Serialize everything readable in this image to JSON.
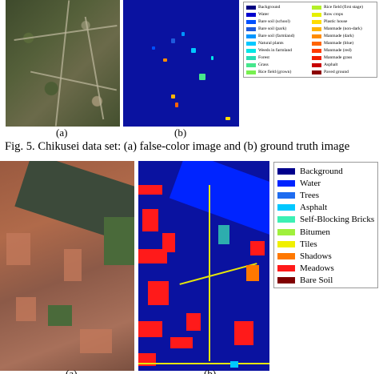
{
  "figure5": {
    "subfig_a_label": "(a)",
    "subfig_b_label": "(b)",
    "caption": "Fig. 5.  Chikusei data set: (a) false-color image and (b) ground truth image",
    "legend": [
      {
        "label": "Background",
        "color": "#000080"
      },
      {
        "label": "Water",
        "color": "#0000cd"
      },
      {
        "label": "Bare soil (school)",
        "color": "#0050ff"
      },
      {
        "label": "Bare soil (park)",
        "color": "#1e5adc"
      },
      {
        "label": "Bare soil (farmland)",
        "color": "#0096ff"
      },
      {
        "label": "Natural plants",
        "color": "#00c8ff"
      },
      {
        "label": "Weeds in farmland",
        "color": "#00e6e6"
      },
      {
        "label": "Forest",
        "color": "#28dcb4"
      },
      {
        "label": "Grass",
        "color": "#46e68c"
      },
      {
        "label": "Rice field (grown)",
        "color": "#78f050"
      },
      {
        "label": "Rice field (first stage)",
        "color": "#b4f028"
      },
      {
        "label": "Row crops",
        "color": "#e6f000"
      },
      {
        "label": "Plastic house",
        "color": "#ffdc00"
      },
      {
        "label": "Manmade (non-dark)",
        "color": "#ffb400"
      },
      {
        "label": "Manmade (dark)",
        "color": "#ff8c00"
      },
      {
        "label": "Manmade (blue)",
        "color": "#ff6400"
      },
      {
        "label": "Manmade (red)",
        "color": "#ff3c00"
      },
      {
        "label": "Manmade grass",
        "color": "#f01e00"
      },
      {
        "label": "Asphalt",
        "color": "#c80000"
      },
      {
        "label": "Paved ground",
        "color": "#8c0000"
      }
    ]
  },
  "figure6": {
    "subfig_a_label": "(a)",
    "subfig_b_label": "(b)",
    "legend": [
      {
        "label": "Background",
        "color": "#00008c"
      },
      {
        "label": "Water",
        "color": "#0024ff"
      },
      {
        "label": "Trees",
        "color": "#1e6cf0"
      },
      {
        "label": "Asphalt",
        "color": "#00c8ff"
      },
      {
        "label": "Self-Blocking Bricks",
        "color": "#3cf0b4"
      },
      {
        "label": "Bitumen",
        "color": "#a0f03c"
      },
      {
        "label": "Tiles",
        "color": "#f0f000"
      },
      {
        "label": "Shadows",
        "color": "#ff7800"
      },
      {
        "label": "Meadows",
        "color": "#ff1a1a"
      },
      {
        "label": "Bare Soil",
        "color": "#800000"
      }
    ]
  }
}
